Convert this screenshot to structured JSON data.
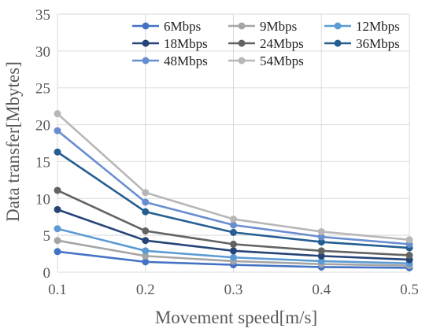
{
  "chart_data": {
    "type": "line",
    "xlabel": "Movement speed[m/s]",
    "ylabel": "Data transfer[Mbytes]",
    "x": [
      0.1,
      0.2,
      0.3,
      0.4,
      0.5
    ],
    "x_tick_labels": [
      "0.1",
      "0.2",
      "0.3",
      "0.4",
      "0.5"
    ],
    "xlim": [
      0.1,
      0.5
    ],
    "ylim": [
      0,
      35
    ],
    "y_ticks": [
      0,
      5,
      10,
      15,
      20,
      25,
      30,
      35
    ],
    "grid": "vertical and horizontal",
    "legend_position": "top-right",
    "series": [
      {
        "name": "6Mbps",
        "color": "#4472C4",
        "values": [
          2.8,
          1.4,
          1.0,
          0.7,
          0.6
        ]
      },
      {
        "name": "9Mbps",
        "color": "#A5A5A5",
        "values": [
          4.3,
          2.2,
          1.5,
          1.1,
          0.9
        ]
      },
      {
        "name": "12Mbps",
        "color": "#5B9BD5",
        "values": [
          5.9,
          2.9,
          2.0,
          1.5,
          1.2
        ]
      },
      {
        "name": "18Mbps",
        "color": "#264478",
        "values": [
          8.5,
          4.3,
          2.9,
          2.2,
          1.7
        ]
      },
      {
        "name": "24Mbps",
        "color": "#636363",
        "values": [
          11.1,
          5.6,
          3.8,
          2.9,
          2.3
        ]
      },
      {
        "name": "36Mbps",
        "color": "#255E91",
        "values": [
          16.3,
          8.2,
          5.4,
          4.1,
          3.3
        ]
      },
      {
        "name": "48Mbps",
        "color": "#698ED0",
        "values": [
          19.2,
          9.5,
          6.4,
          4.8,
          3.8
        ]
      },
      {
        "name": "54Mbps",
        "color": "#B7B7B7",
        "values": [
          21.5,
          10.8,
          7.2,
          5.5,
          4.4
        ]
      }
    ]
  }
}
